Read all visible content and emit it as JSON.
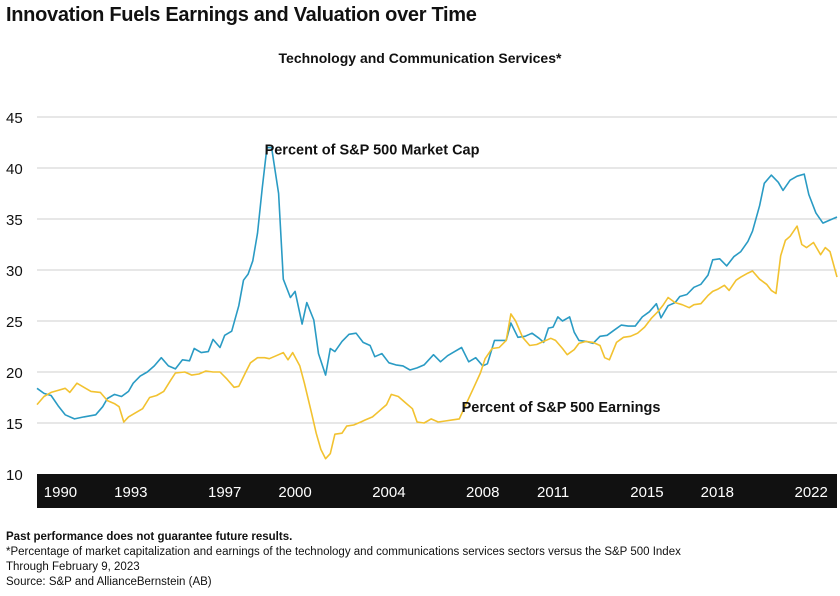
{
  "title": "Innovation Fuels Earnings and Valuation over Time",
  "subtitle": "Technology and Communication Services*",
  "footer": {
    "disclaimer": "Past performance does not guarantee future results.",
    "note": "*Percentage of market capitalization and earnings of the technology and communications services sectors versus the S&P 500 Index",
    "date": "Through February 9, 2023",
    "source": "Source: S&P and AllianceBernstein (AB)"
  },
  "colors": {
    "market_cap": "#2a9bc4",
    "earnings": "#f2c230",
    "axis_band": "#111111",
    "grid": "#cfcfcf"
  },
  "chart_data": {
    "type": "line",
    "xlim": [
      1989.0,
      2023.1
    ],
    "ylim": [
      10,
      45
    ],
    "yticks": [
      10,
      15,
      20,
      25,
      30,
      35,
      40,
      45
    ],
    "xticks": [
      {
        "label": "1990",
        "x": 1990
      },
      {
        "label": "1993",
        "x": 1993
      },
      {
        "label": "1997",
        "x": 1997
      },
      {
        "label": "2000",
        "x": 2000
      },
      {
        "label": "2004",
        "x": 2004
      },
      {
        "label": "2008",
        "x": 2008
      },
      {
        "label": "2011",
        "x": 2011
      },
      {
        "label": "2015",
        "x": 2015
      },
      {
        "label": "2018",
        "x": 2018
      },
      {
        "label": "2022",
        "x": 2022
      }
    ],
    "grid": true,
    "series": [
      {
        "name": "Percent of S&P 500 Market Cap",
        "color": "#2a9bc4",
        "points": [
          [
            1989.0,
            18.4
          ],
          [
            1989.3,
            17.9
          ],
          [
            1989.6,
            17.7
          ],
          [
            1989.9,
            16.7
          ],
          [
            1990.2,
            15.8
          ],
          [
            1990.6,
            15.4
          ],
          [
            1991.0,
            15.6
          ],
          [
            1991.5,
            15.8
          ],
          [
            1991.8,
            16.6
          ],
          [
            1992.0,
            17.4
          ],
          [
            1992.3,
            17.8
          ],
          [
            1992.6,
            17.6
          ],
          [
            1992.9,
            18.1
          ],
          [
            1993.1,
            18.9
          ],
          [
            1993.4,
            19.6
          ],
          [
            1993.7,
            20.0
          ],
          [
            1994.0,
            20.6
          ],
          [
            1994.3,
            21.4
          ],
          [
            1994.6,
            20.6
          ],
          [
            1994.9,
            20.3
          ],
          [
            1995.2,
            21.2
          ],
          [
            1995.5,
            21.1
          ],
          [
            1995.7,
            22.3
          ],
          [
            1996.0,
            21.9
          ],
          [
            1996.3,
            22.0
          ],
          [
            1996.5,
            23.2
          ],
          [
            1996.8,
            22.4
          ],
          [
            1997.0,
            23.6
          ],
          [
            1997.3,
            24.0
          ],
          [
            1997.6,
            26.5
          ],
          [
            1997.8,
            29.0
          ],
          [
            1998.0,
            29.6
          ],
          [
            1998.2,
            30.9
          ],
          [
            1998.4,
            33.6
          ],
          [
            1998.6,
            38.0
          ],
          [
            1998.8,
            42.0
          ],
          [
            1999.0,
            42.0
          ],
          [
            1999.3,
            37.5
          ],
          [
            1999.5,
            29.1
          ],
          [
            1999.8,
            27.3
          ],
          [
            2000.0,
            27.9
          ],
          [
            2000.3,
            24.7
          ],
          [
            2000.5,
            26.8
          ],
          [
            2000.8,
            25.1
          ],
          [
            2001.0,
            21.8
          ],
          [
            2001.3,
            19.7
          ],
          [
            2001.5,
            22.3
          ],
          [
            2001.7,
            22.0
          ],
          [
            2002.0,
            23.0
          ],
          [
            2002.3,
            23.7
          ],
          [
            2002.6,
            23.8
          ],
          [
            2002.9,
            22.9
          ],
          [
            2003.2,
            22.6
          ],
          [
            2003.4,
            21.5
          ],
          [
            2003.7,
            21.8
          ],
          [
            2004.0,
            20.9
          ],
          [
            2004.3,
            20.7
          ],
          [
            2004.6,
            20.6
          ],
          [
            2004.9,
            20.2
          ],
          [
            2005.2,
            20.4
          ],
          [
            2005.5,
            20.7
          ],
          [
            2005.9,
            21.7
          ],
          [
            2006.2,
            21.0
          ],
          [
            2006.5,
            21.6
          ],
          [
            2006.8,
            22.0
          ],
          [
            2007.1,
            22.4
          ],
          [
            2007.4,
            21.0
          ],
          [
            2007.7,
            21.4
          ],
          [
            2008.0,
            20.6
          ],
          [
            2008.2,
            20.8
          ],
          [
            2008.5,
            23.1
          ],
          [
            2008.7,
            23.1
          ],
          [
            2009.0,
            23.1
          ],
          [
            2009.2,
            24.8
          ],
          [
            2009.5,
            23.4
          ],
          [
            2009.8,
            23.5
          ],
          [
            2010.1,
            23.8
          ],
          [
            2010.4,
            23.3
          ],
          [
            2010.6,
            22.9
          ],
          [
            2010.8,
            24.3
          ],
          [
            2011.0,
            24.4
          ],
          [
            2011.2,
            25.4
          ],
          [
            2011.4,
            25.0
          ],
          [
            2011.7,
            25.4
          ],
          [
            2011.9,
            23.9
          ],
          [
            2012.1,
            23.1
          ],
          [
            2012.4,
            23.0
          ],
          [
            2012.7,
            22.8
          ],
          [
            2013.0,
            23.5
          ],
          [
            2013.3,
            23.6
          ],
          [
            2013.6,
            24.1
          ],
          [
            2013.9,
            24.6
          ],
          [
            2014.2,
            24.5
          ],
          [
            2014.5,
            24.5
          ],
          [
            2014.8,
            25.4
          ],
          [
            2015.1,
            25.9
          ],
          [
            2015.4,
            26.7
          ],
          [
            2015.6,
            25.3
          ],
          [
            2015.9,
            26.5
          ],
          [
            2016.2,
            26.8
          ],
          [
            2016.4,
            27.4
          ],
          [
            2016.7,
            27.6
          ],
          [
            2017.0,
            28.3
          ],
          [
            2017.3,
            28.6
          ],
          [
            2017.6,
            29.5
          ],
          [
            2017.8,
            31.0
          ],
          [
            2018.1,
            31.1
          ],
          [
            2018.4,
            30.4
          ],
          [
            2018.7,
            31.3
          ],
          [
            2019.0,
            31.8
          ],
          [
            2019.3,
            32.8
          ],
          [
            2019.5,
            33.8
          ],
          [
            2019.8,
            36.3
          ],
          [
            2020.0,
            38.5
          ],
          [
            2020.3,
            39.3
          ],
          [
            2020.6,
            38.6
          ],
          [
            2020.8,
            37.8
          ],
          [
            2021.1,
            38.8
          ],
          [
            2021.4,
            39.2
          ],
          [
            2021.7,
            39.4
          ],
          [
            2021.9,
            37.4
          ],
          [
            2022.2,
            35.6
          ],
          [
            2022.5,
            34.6
          ],
          [
            2022.8,
            34.9
          ],
          [
            2023.1,
            35.2
          ]
        ]
      },
      {
        "name": "Percent of S&P 500 Earnings",
        "color": "#f2c230",
        "points": [
          [
            1989.0,
            16.8
          ],
          [
            1989.3,
            17.6
          ],
          [
            1989.6,
            18.0
          ],
          [
            1989.9,
            18.2
          ],
          [
            1990.2,
            18.4
          ],
          [
            1990.4,
            18.0
          ],
          [
            1990.7,
            18.9
          ],
          [
            1991.0,
            18.5
          ],
          [
            1991.3,
            18.1
          ],
          [
            1991.7,
            18.0
          ],
          [
            1992.0,
            17.2
          ],
          [
            1992.3,
            16.9
          ],
          [
            1992.5,
            16.6
          ],
          [
            1992.7,
            15.1
          ],
          [
            1992.9,
            15.6
          ],
          [
            1993.2,
            16.0
          ],
          [
            1993.5,
            16.4
          ],
          [
            1993.8,
            17.5
          ],
          [
            1994.1,
            17.7
          ],
          [
            1994.4,
            18.1
          ],
          [
            1994.7,
            19.2
          ],
          [
            1994.9,
            19.9
          ],
          [
            1995.3,
            20.0
          ],
          [
            1995.6,
            19.7
          ],
          [
            1995.9,
            19.8
          ],
          [
            1996.2,
            20.1
          ],
          [
            1996.5,
            20.0
          ],
          [
            1996.8,
            20.0
          ],
          [
            1997.1,
            19.3
          ],
          [
            1997.4,
            18.5
          ],
          [
            1997.6,
            18.6
          ],
          [
            1997.9,
            20.0
          ],
          [
            1998.1,
            20.9
          ],
          [
            1998.4,
            21.4
          ],
          [
            1998.7,
            21.4
          ],
          [
            1998.9,
            21.3
          ],
          [
            1999.2,
            21.6
          ],
          [
            1999.5,
            21.9
          ],
          [
            1999.7,
            21.2
          ],
          [
            1999.9,
            21.9
          ],
          [
            2000.2,
            20.6
          ],
          [
            2000.4,
            18.9
          ],
          [
            2000.7,
            16.0
          ],
          [
            2000.9,
            14.0
          ],
          [
            2001.1,
            12.4
          ],
          [
            2001.3,
            11.5
          ],
          [
            2001.5,
            12.0
          ],
          [
            2001.7,
            13.9
          ],
          [
            2002.0,
            14.0
          ],
          [
            2002.2,
            14.7
          ],
          [
            2002.5,
            14.8
          ],
          [
            2002.8,
            15.1
          ],
          [
            2003.0,
            15.3
          ],
          [
            2003.3,
            15.6
          ],
          [
            2003.6,
            16.2
          ],
          [
            2003.9,
            16.8
          ],
          [
            2004.1,
            17.8
          ],
          [
            2004.4,
            17.6
          ],
          [
            2004.7,
            17.0
          ],
          [
            2005.0,
            16.4
          ],
          [
            2005.2,
            15.1
          ],
          [
            2005.5,
            15.0
          ],
          [
            2005.8,
            15.4
          ],
          [
            2006.1,
            15.1
          ],
          [
            2006.4,
            15.2
          ],
          [
            2006.7,
            15.3
          ],
          [
            2007.0,
            15.4
          ],
          [
            2007.3,
            16.9
          ],
          [
            2007.6,
            18.4
          ],
          [
            2007.9,
            19.9
          ],
          [
            2008.1,
            21.3
          ],
          [
            2008.4,
            22.3
          ],
          [
            2008.7,
            22.4
          ],
          [
            2009.0,
            23.1
          ],
          [
            2009.2,
            25.7
          ],
          [
            2009.4,
            25.0
          ],
          [
            2009.7,
            23.4
          ],
          [
            2010.0,
            22.6
          ],
          [
            2010.3,
            22.7
          ],
          [
            2010.6,
            23.0
          ],
          [
            2010.9,
            23.3
          ],
          [
            2011.1,
            23.1
          ],
          [
            2011.4,
            22.3
          ],
          [
            2011.6,
            21.7
          ],
          [
            2011.9,
            22.2
          ],
          [
            2012.1,
            22.8
          ],
          [
            2012.4,
            23.0
          ],
          [
            2012.7,
            22.9
          ],
          [
            2013.0,
            22.6
          ],
          [
            2013.2,
            21.4
          ],
          [
            2013.4,
            21.2
          ],
          [
            2013.7,
            22.9
          ],
          [
            2014.0,
            23.4
          ],
          [
            2014.3,
            23.5
          ],
          [
            2014.6,
            23.8
          ],
          [
            2014.9,
            24.4
          ],
          [
            2015.2,
            25.3
          ],
          [
            2015.5,
            26.0
          ],
          [
            2015.7,
            26.6
          ],
          [
            2015.9,
            27.3
          ],
          [
            2016.2,
            26.8
          ],
          [
            2016.5,
            26.6
          ],
          [
            2016.8,
            26.3
          ],
          [
            2017.0,
            26.6
          ],
          [
            2017.3,
            26.7
          ],
          [
            2017.6,
            27.5
          ],
          [
            2017.8,
            27.9
          ],
          [
            2018.0,
            28.1
          ],
          [
            2018.3,
            28.5
          ],
          [
            2018.5,
            28.0
          ],
          [
            2018.8,
            29.0
          ],
          [
            2019.0,
            29.3
          ],
          [
            2019.3,
            29.7
          ],
          [
            2019.5,
            29.9
          ],
          [
            2019.8,
            29.1
          ],
          [
            2020.1,
            28.6
          ],
          [
            2020.3,
            28.0
          ],
          [
            2020.5,
            27.7
          ],
          [
            2020.7,
            31.4
          ],
          [
            2020.9,
            32.9
          ],
          [
            2021.1,
            33.3
          ],
          [
            2021.4,
            34.3
          ],
          [
            2021.6,
            32.5
          ],
          [
            2021.8,
            32.2
          ],
          [
            2022.1,
            32.7
          ],
          [
            2022.4,
            31.5
          ],
          [
            2022.6,
            32.2
          ],
          [
            2022.8,
            31.8
          ],
          [
            2023.1,
            29.3
          ]
        ]
      }
    ],
    "annotations": [
      {
        "text": "Percent of S&P 500 Market Cap",
        "x": 1998.7,
        "y": 41.3
      },
      {
        "text": "Percent of S&P 500 Earnings",
        "x": 2007.1,
        "y": 16.1
      }
    ]
  }
}
